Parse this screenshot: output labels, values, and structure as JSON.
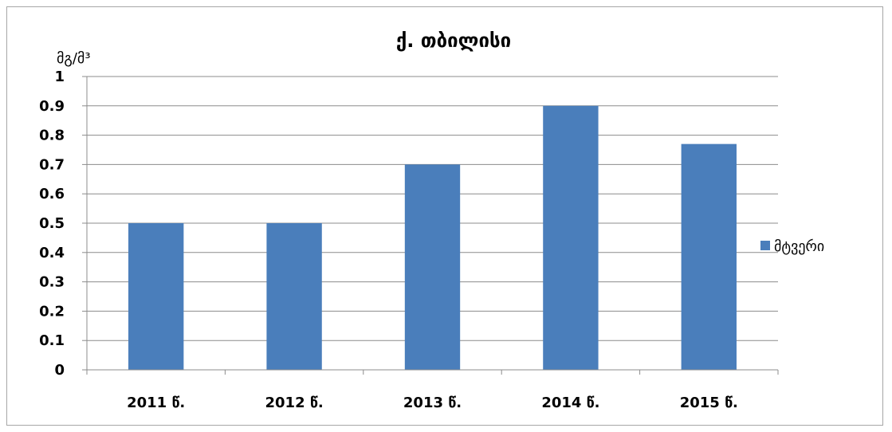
{
  "chart_data": {
    "type": "bar",
    "title": "ქ. თბილისი",
    "ylabel": "მგ/მ³",
    "xlabel": "",
    "categories": [
      "2011 წ.",
      "2012 წ.",
      "2013 წ.",
      "2014 წ.",
      "2015 წ."
    ],
    "series": [
      {
        "name": "მტვერი",
        "values": [
          0.5,
          0.5,
          0.7,
          0.9,
          0.77
        ],
        "color": "#4a7ebb"
      }
    ],
    "ylim": [
      0,
      1
    ],
    "yticks": [
      "0",
      "0.1",
      "0.2",
      "0.3",
      "0.4",
      "0.5",
      "0.6",
      "0.7",
      "0.8",
      "0.9",
      "1"
    ],
    "grid": true,
    "legend_position": "right"
  }
}
